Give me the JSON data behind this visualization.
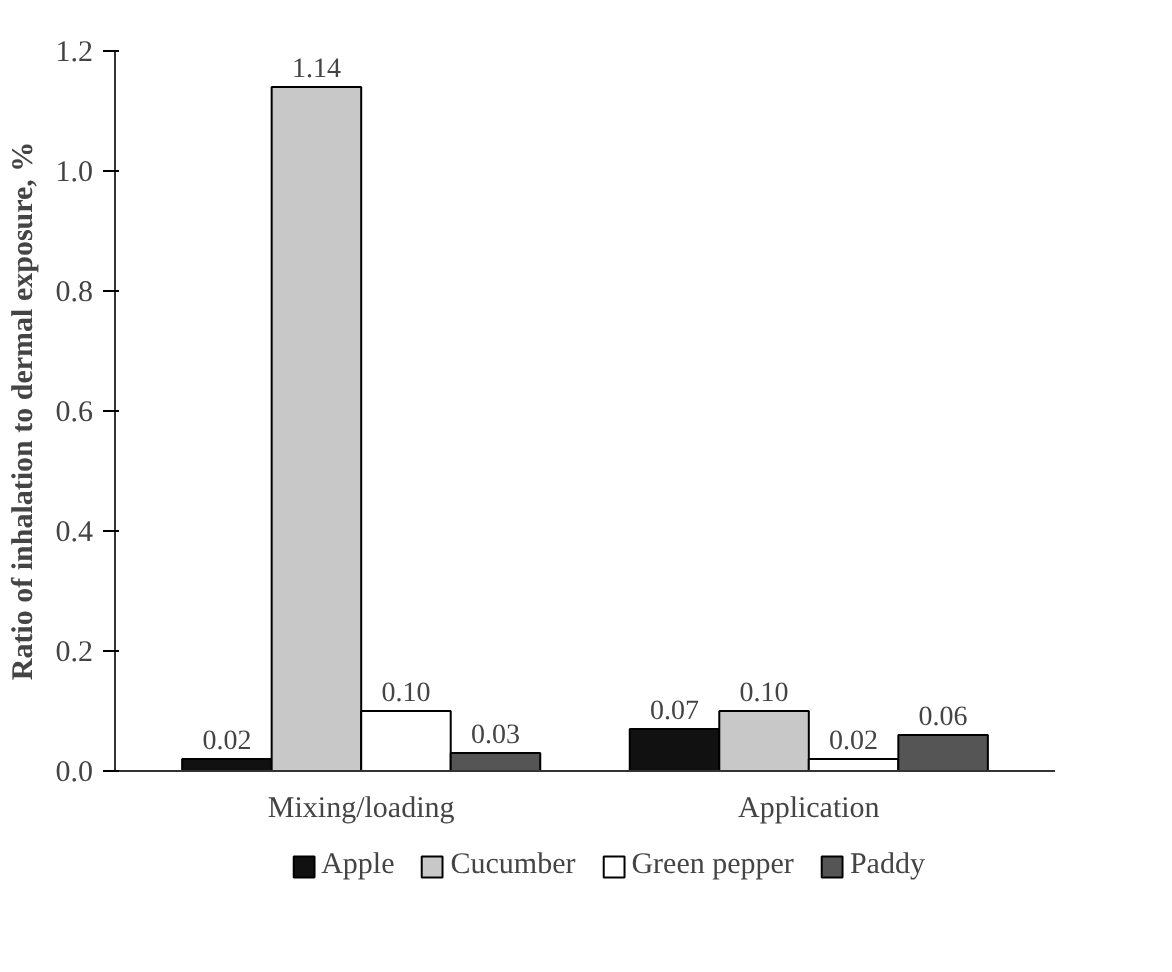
{
  "chart_data": {
    "type": "bar",
    "categories": [
      "Mixing/loading",
      "Application"
    ],
    "ylabel": "Ratio of inhalation to dermal exposure, %",
    "ylim": [
      0,
      1.2
    ],
    "yticks": [
      {
        "value": 0,
        "label": "0.0"
      },
      {
        "value": 0.2,
        "label": "0.2"
      },
      {
        "value": 0.4,
        "label": "0.4"
      },
      {
        "value": 0.6,
        "label": "0.6"
      },
      {
        "value": 0.8,
        "label": "0.8"
      },
      {
        "value": 1.0,
        "label": "1.0"
      },
      {
        "value": 1.2,
        "label": "1.2"
      }
    ],
    "series": [
      {
        "name": "Apple",
        "color": "#111111",
        "values": [
          0.02,
          0.07
        ],
        "value_labels": [
          "0.02",
          "0.07"
        ]
      },
      {
        "name": "Cucumber",
        "color": "#c8c8c8",
        "values": [
          1.14,
          0.1
        ],
        "value_labels": [
          "1.14",
          "0.10"
        ]
      },
      {
        "name": "Green pepper",
        "color": "#ffffff",
        "values": [
          0.1,
          0.02
        ],
        "value_labels": [
          "0.10",
          "0.02"
        ]
      },
      {
        "name": "Paddy",
        "color": "#555555",
        "values": [
          0.03,
          0.06
        ],
        "value_labels": [
          "0.03",
          "0.06"
        ]
      }
    ],
    "grid": false,
    "legend": "bottom"
  }
}
